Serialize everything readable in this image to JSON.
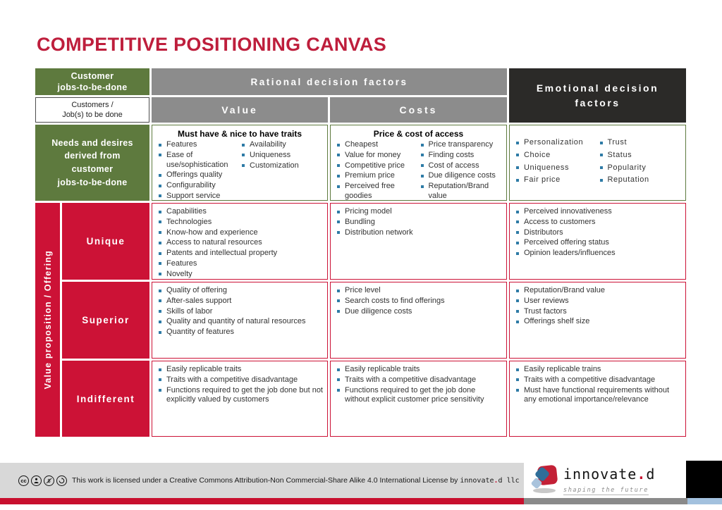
{
  "title": "COMPETITIVE POSITIONING CANVAS",
  "colors": {
    "title_red": "#be1e3c",
    "cell_red": "#cc1236",
    "green": "#5e7a3e",
    "gray": "#8c8c8c",
    "dark": "#2b2a28",
    "bullet_blue": "#2e7ba6",
    "footer_band": "#d8d8d8",
    "bar_blue": "#a3c1de"
  },
  "header": {
    "customer_jobs": "Customer\njobs-to-be-done",
    "customers_cell": "Customers /\nJob(s) to be done",
    "rational": "Rational decision factors",
    "value": "Value",
    "costs": "Costs",
    "emotional": "Emotional decision\nfactors"
  },
  "needs_row": {
    "label": "Needs and desires\nderived from\ncustomer\njobs-to-be-done",
    "value": {
      "heading": "Must have & nice to have traits",
      "col1": [
        "Features",
        "Ease of use/sophistication",
        "Offerings quality",
        "Configurability",
        "Support service"
      ],
      "col2": [
        "Availability",
        "Uniqueness",
        "Customization"
      ]
    },
    "costs": {
      "heading": "Price & cost of access",
      "col1": [
        "Cheapest",
        "Value for money",
        "Competitive price",
        "Premium price",
        "Perceived free goodies"
      ],
      "col2": [
        "Price transparency",
        "Finding costs",
        "Cost of access",
        "Due diligence costs",
        "Reputation/Brand value"
      ]
    },
    "emotional": {
      "col1": [
        "Personalization",
        "Choice",
        "Uniqueness",
        "Fair price"
      ],
      "col2": [
        "Trust",
        "Status",
        "Popularity",
        "Reputation"
      ]
    }
  },
  "offering": {
    "axis_label": "Value proposition / Offering",
    "rows": [
      {
        "label": "Unique",
        "value": [
          "Capabilities",
          "Technologies",
          "Know-how and experience",
          "Access to natural resources",
          "Patents and intellectual property",
          "Features",
          "Novelty"
        ],
        "costs": [
          "Pricing model",
          "Bundling",
          "Distribution network"
        ],
        "emotional": [
          "Perceived innovativeness",
          "Access to customers",
          "Distributors",
          "Perceived offering status",
          "Opinion leaders/influences"
        ]
      },
      {
        "label": "Superior",
        "value": [
          "Quality of offering",
          "After-sales support",
          "Skills of labor",
          "Quality and quantity of natural resources",
          "Quantity of features"
        ],
        "costs": [
          "Price level",
          "Search costs to find offerings",
          "Due diligence costs"
        ],
        "emotional": [
          "Reputation/Brand value",
          "User reviews",
          "Trust factors",
          "Offerings shelf size"
        ]
      },
      {
        "label": "Indifferent",
        "value": [
          "Easily replicable traits",
          "Traits with a competitive disadvantage",
          "Functions required to get the job done but not explicitly valued by customers"
        ],
        "costs": [
          "Easily replicable traits",
          "Traits with a competitive disadvantage",
          "Functions required to get the job done without explicit customer price sensitivity"
        ],
        "emotional": [
          "Easily replicable trains",
          "Traits with a competitive disadvantage",
          "Must have functional requirements without any emotional importance/relevance"
        ]
      }
    ]
  },
  "footer": {
    "icons": [
      "cc-icon",
      "attribution-person-icon",
      "non-commercial-dollar-icon",
      "share-alike-arrow-icon"
    ],
    "cc_glyph": "cc",
    "license_prefix": "This work is licensed under a Creative Commons Attribution-Non Commercial-Share Alike 4.0 International License by ",
    "brand_mono_pre": "innovate",
    "brand_dot": ".",
    "brand_mono_post": "d llc"
  },
  "logo": {
    "name_pre": "innovate",
    "dot": ".",
    "name_post": "d",
    "tagline": "shaping the future"
  }
}
